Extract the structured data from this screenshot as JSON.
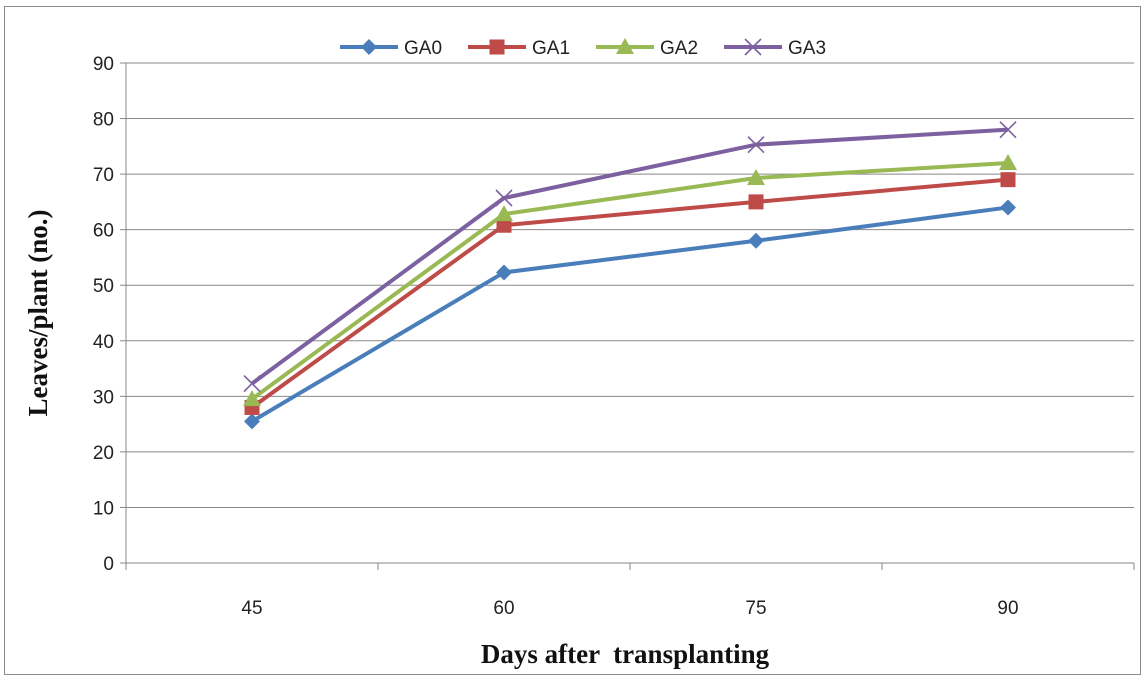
{
  "chart_data": {
    "type": "line",
    "title": "",
    "xlabel": "Days after  transplanting",
    "ylabel": "Leaves/plant (no.)",
    "categories": [
      "45",
      "60",
      "75",
      "90"
    ],
    "ylim": [
      0,
      90
    ],
    "yticks": [
      "0",
      "10",
      "20",
      "30",
      "40",
      "50",
      "60",
      "70",
      "80",
      "90"
    ],
    "grid": true,
    "legend_position": "top",
    "series": [
      {
        "name": "GA0",
        "values": [
          25.5,
          52.3,
          58.0,
          64.0
        ],
        "color": "#4a7ebb",
        "marker": "diamond"
      },
      {
        "name": "GA1",
        "values": [
          28.0,
          60.8,
          65.0,
          69.0
        ],
        "color": "#be4b48",
        "marker": "square"
      },
      {
        "name": "GA2",
        "values": [
          29.5,
          62.8,
          69.3,
          72.0
        ],
        "color": "#98b954",
        "marker": "triangle"
      },
      {
        "name": "GA3",
        "values": [
          32.3,
          65.7,
          75.3,
          78.0
        ],
        "color": "#7d60a0",
        "marker": "x"
      }
    ]
  }
}
